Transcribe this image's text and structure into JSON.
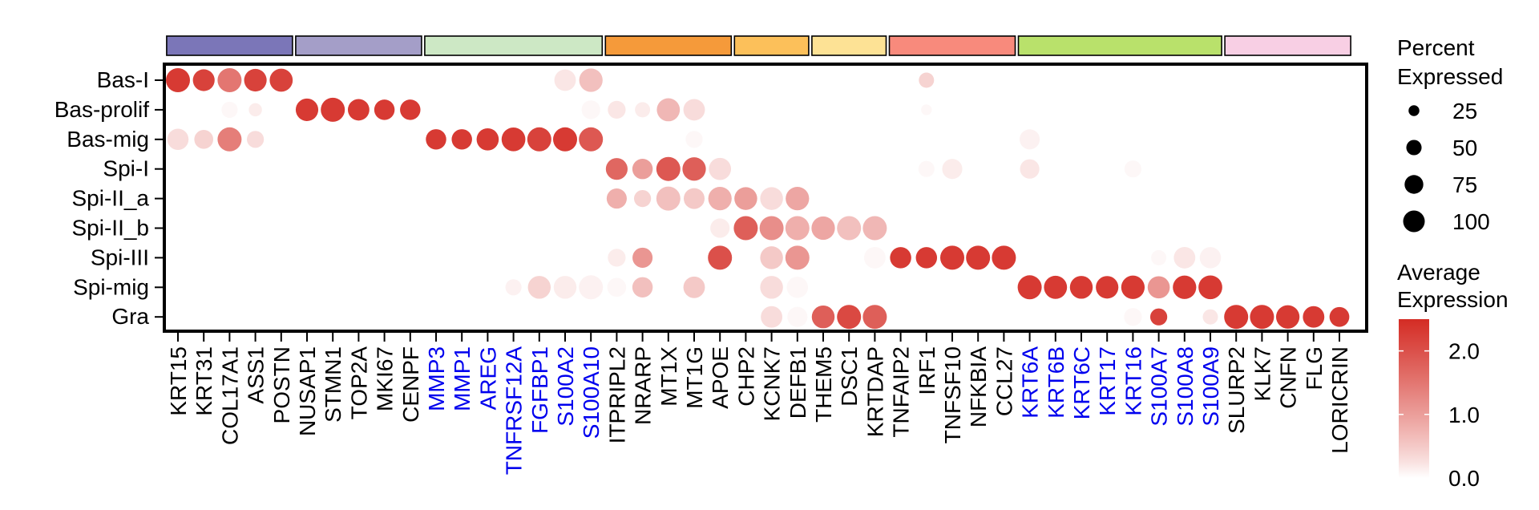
{
  "chart_data": {
    "type": "dotplot",
    "rows": [
      "Bas-I",
      "Bas-prolif",
      "Bas-mig",
      "Spi-I",
      "Spi-II_a",
      "Spi-II_b",
      "Spi-III",
      "Spi-mig",
      "Gra"
    ],
    "genes": [
      "KRT15",
      "KRT31",
      "COL17A1",
      "ASS1",
      "POSTN",
      "NUSAP1",
      "STMN1",
      "TOP2A",
      "MKI67",
      "CENPF",
      "MMP3",
      "MMP1",
      "AREG",
      "TNFRSF12A",
      "FGFBP1",
      "S100A2",
      "S100A10",
      "ITPRIPL2",
      "NRARP",
      "MT1X",
      "MT1G",
      "APOE",
      "CHP2",
      "KCNK7",
      "DEFB1",
      "THEM5",
      "DSC1",
      "KRTDAP",
      "TNFAIP2",
      "IRF1",
      "TNFSF10",
      "NFKBIA",
      "CCL27",
      "KRT6A",
      "KRT6B",
      "KRT6C",
      "KRT17",
      "KRT16",
      "S100A7",
      "S100A8",
      "S100A9",
      "SLURP2",
      "KLK7",
      "CNFN",
      "FLG",
      "LORICRIN"
    ],
    "gene_colors": [
      "#000000",
      "#000000",
      "#000000",
      "#000000",
      "#000000",
      "#000000",
      "#000000",
      "#000000",
      "#000000",
      "#000000",
      "#0000ee",
      "#0000ee",
      "#0000ee",
      "#0000ee",
      "#0000ee",
      "#0000ee",
      "#0000ee",
      "#000000",
      "#000000",
      "#000000",
      "#000000",
      "#000000",
      "#000000",
      "#000000",
      "#000000",
      "#000000",
      "#000000",
      "#000000",
      "#000000",
      "#000000",
      "#000000",
      "#000000",
      "#000000",
      "#0000ee",
      "#0000ee",
      "#0000ee",
      "#0000ee",
      "#0000ee",
      "#0000ee",
      "#0000ee",
      "#0000ee",
      "#000000",
      "#000000",
      "#000000",
      "#000000",
      "#000000"
    ],
    "groups": [
      {
        "start": 0,
        "end": 4,
        "color": "#7b76b8"
      },
      {
        "start": 5,
        "end": 9,
        "color": "#a49ec8"
      },
      {
        "start": 10,
        "end": 16,
        "color": "#cde8c5"
      },
      {
        "start": 17,
        "end": 21,
        "color": "#f59a3a"
      },
      {
        "start": 22,
        "end": 24,
        "color": "#fcc05a"
      },
      {
        "start": 25,
        "end": 27,
        "color": "#fde295"
      },
      {
        "start": 28,
        "end": 32,
        "color": "#f88a7c"
      },
      {
        "start": 33,
        "end": 40,
        "color": "#b9e16b"
      },
      {
        "start": 41,
        "end": 45,
        "color": "#f8cfe4"
      }
    ],
    "points": [
      {
        "row": 0,
        "gene": 0,
        "pct": 100,
        "avg": 2.3
      },
      {
        "row": 0,
        "gene": 1,
        "pct": 82,
        "avg": 2.2
      },
      {
        "row": 0,
        "gene": 2,
        "pct": 100,
        "avg": 1.5
      },
      {
        "row": 0,
        "gene": 3,
        "pct": 88,
        "avg": 2.2
      },
      {
        "row": 0,
        "gene": 4,
        "pct": 92,
        "avg": 2.2
      },
      {
        "row": 0,
        "gene": 15,
        "pct": 80,
        "avg": 0.2
      },
      {
        "row": 0,
        "gene": 16,
        "pct": 95,
        "avg": 0.6
      },
      {
        "row": 0,
        "gene": 29,
        "pct": 40,
        "avg": 0.4
      },
      {
        "row": 1,
        "gene": 2,
        "pct": 45,
        "avg": 0.05
      },
      {
        "row": 1,
        "gene": 3,
        "pct": 30,
        "avg": 0.15
      },
      {
        "row": 1,
        "gene": 5,
        "pct": 88,
        "avg": 2.3
      },
      {
        "row": 1,
        "gene": 6,
        "pct": 100,
        "avg": 2.3
      },
      {
        "row": 1,
        "gene": 7,
        "pct": 80,
        "avg": 2.3
      },
      {
        "row": 1,
        "gene": 8,
        "pct": 72,
        "avg": 2.3
      },
      {
        "row": 1,
        "gene": 9,
        "pct": 72,
        "avg": 2.3
      },
      {
        "row": 1,
        "gene": 16,
        "pct": 60,
        "avg": 0.05
      },
      {
        "row": 1,
        "gene": 17,
        "pct": 55,
        "avg": 0.2
      },
      {
        "row": 1,
        "gene": 18,
        "pct": 40,
        "avg": 0.15
      },
      {
        "row": 1,
        "gene": 19,
        "pct": 92,
        "avg": 0.7
      },
      {
        "row": 1,
        "gene": 20,
        "pct": 80,
        "avg": 0.3
      },
      {
        "row": 1,
        "gene": 29,
        "pct": 20,
        "avg": 0.05
      },
      {
        "row": 2,
        "gene": 0,
        "pct": 78,
        "avg": 0.3
      },
      {
        "row": 2,
        "gene": 1,
        "pct": 62,
        "avg": 0.4
      },
      {
        "row": 2,
        "gene": 2,
        "pct": 100,
        "avg": 1.4
      },
      {
        "row": 2,
        "gene": 3,
        "pct": 50,
        "avg": 0.3
      },
      {
        "row": 2,
        "gene": 10,
        "pct": 72,
        "avg": 2.3
      },
      {
        "row": 2,
        "gene": 11,
        "pct": 72,
        "avg": 2.3
      },
      {
        "row": 2,
        "gene": 12,
        "pct": 85,
        "avg": 2.3
      },
      {
        "row": 2,
        "gene": 13,
        "pct": 98,
        "avg": 2.3
      },
      {
        "row": 2,
        "gene": 14,
        "pct": 100,
        "avg": 2.2
      },
      {
        "row": 2,
        "gene": 15,
        "pct": 100,
        "avg": 2.3
      },
      {
        "row": 2,
        "gene": 16,
        "pct": 100,
        "avg": 1.9
      },
      {
        "row": 2,
        "gene": 20,
        "pct": 50,
        "avg": 0.05
      },
      {
        "row": 2,
        "gene": 33,
        "pct": 70,
        "avg": 0.1
      },
      {
        "row": 3,
        "gene": 17,
        "pct": 82,
        "avg": 1.7
      },
      {
        "row": 3,
        "gene": 18,
        "pct": 72,
        "avg": 1.0
      },
      {
        "row": 3,
        "gene": 19,
        "pct": 100,
        "avg": 1.9
      },
      {
        "row": 3,
        "gene": 20,
        "pct": 95,
        "avg": 1.8
      },
      {
        "row": 3,
        "gene": 21,
        "pct": 85,
        "avg": 0.3
      },
      {
        "row": 3,
        "gene": 29,
        "pct": 45,
        "avg": 0.05
      },
      {
        "row": 3,
        "gene": 30,
        "pct": 70,
        "avg": 0.15
      },
      {
        "row": 3,
        "gene": 33,
        "pct": 65,
        "avg": 0.2
      },
      {
        "row": 3,
        "gene": 37,
        "pct": 50,
        "avg": 0.05
      },
      {
        "row": 4,
        "gene": 17,
        "pct": 70,
        "avg": 0.8
      },
      {
        "row": 4,
        "gene": 18,
        "pct": 50,
        "avg": 0.4
      },
      {
        "row": 4,
        "gene": 19,
        "pct": 100,
        "avg": 0.6
      },
      {
        "row": 4,
        "gene": 20,
        "pct": 75,
        "avg": 0.5
      },
      {
        "row": 4,
        "gene": 21,
        "pct": 95,
        "avg": 0.8
      },
      {
        "row": 4,
        "gene": 22,
        "pct": 90,
        "avg": 1.0
      },
      {
        "row": 4,
        "gene": 23,
        "pct": 90,
        "avg": 0.3
      },
      {
        "row": 4,
        "gene": 24,
        "pct": 95,
        "avg": 0.9
      },
      {
        "row": 5,
        "gene": 21,
        "pct": 65,
        "avg": 0.15
      },
      {
        "row": 5,
        "gene": 22,
        "pct": 100,
        "avg": 1.8
      },
      {
        "row": 5,
        "gene": 23,
        "pct": 100,
        "avg": 1.2
      },
      {
        "row": 5,
        "gene": 24,
        "pct": 100,
        "avg": 0.8
      },
      {
        "row": 5,
        "gene": 25,
        "pct": 95,
        "avg": 0.9
      },
      {
        "row": 5,
        "gene": 26,
        "pct": 100,
        "avg": 0.6
      },
      {
        "row": 5,
        "gene": 27,
        "pct": 100,
        "avg": 0.7
      },
      {
        "row": 6,
        "gene": 17,
        "pct": 55,
        "avg": 0.15
      },
      {
        "row": 6,
        "gene": 18,
        "pct": 70,
        "avg": 1.1
      },
      {
        "row": 6,
        "gene": 21,
        "pct": 100,
        "avg": 2.0
      },
      {
        "row": 6,
        "gene": 23,
        "pct": 90,
        "avg": 0.5
      },
      {
        "row": 6,
        "gene": 24,
        "pct": 100,
        "avg": 1.1
      },
      {
        "row": 6,
        "gene": 27,
        "pct": 80,
        "avg": 0.05
      },
      {
        "row": 6,
        "gene": 28,
        "pct": 78,
        "avg": 2.3
      },
      {
        "row": 6,
        "gene": 29,
        "pct": 78,
        "avg": 2.3
      },
      {
        "row": 6,
        "gene": 30,
        "pct": 100,
        "avg": 2.3
      },
      {
        "row": 6,
        "gene": 31,
        "pct": 100,
        "avg": 2.3
      },
      {
        "row": 6,
        "gene": 32,
        "pct": 100,
        "avg": 2.3
      },
      {
        "row": 6,
        "gene": 38,
        "pct": 40,
        "avg": 0.05
      },
      {
        "row": 6,
        "gene": 39,
        "pct": 80,
        "avg": 0.2
      },
      {
        "row": 6,
        "gene": 40,
        "pct": 78,
        "avg": 0.1
      },
      {
        "row": 7,
        "gene": 13,
        "pct": 45,
        "avg": 0.1
      },
      {
        "row": 7,
        "gene": 14,
        "pct": 90,
        "avg": 0.4
      },
      {
        "row": 7,
        "gene": 15,
        "pct": 90,
        "avg": 0.15
      },
      {
        "row": 7,
        "gene": 16,
        "pct": 100,
        "avg": 0.1
      },
      {
        "row": 7,
        "gene": 17,
        "pct": 62,
        "avg": 0.05
      },
      {
        "row": 7,
        "gene": 18,
        "pct": 72,
        "avg": 0.6
      },
      {
        "row": 7,
        "gene": 20,
        "pct": 80,
        "avg": 0.5
      },
      {
        "row": 7,
        "gene": 23,
        "pct": 90,
        "avg": 0.3
      },
      {
        "row": 7,
        "gene": 24,
        "pct": 78,
        "avg": 0.05
      },
      {
        "row": 7,
        "gene": 33,
        "pct": 100,
        "avg": 2.3
      },
      {
        "row": 7,
        "gene": 34,
        "pct": 92,
        "avg": 2.3
      },
      {
        "row": 7,
        "gene": 35,
        "pct": 90,
        "avg": 2.3
      },
      {
        "row": 7,
        "gene": 36,
        "pct": 88,
        "avg": 2.3
      },
      {
        "row": 7,
        "gene": 37,
        "pct": 95,
        "avg": 2.3
      },
      {
        "row": 7,
        "gene": 38,
        "pct": 85,
        "avg": 1.1
      },
      {
        "row": 7,
        "gene": 39,
        "pct": 95,
        "avg": 2.3
      },
      {
        "row": 7,
        "gene": 40,
        "pct": 98,
        "avg": 2.3
      },
      {
        "row": 8,
        "gene": 23,
        "pct": 80,
        "avg": 0.3
      },
      {
        "row": 8,
        "gene": 24,
        "pct": 70,
        "avg": 0.05
      },
      {
        "row": 8,
        "gene": 25,
        "pct": 90,
        "avg": 1.8
      },
      {
        "row": 8,
        "gene": 26,
        "pct": 100,
        "avg": 2.1
      },
      {
        "row": 8,
        "gene": 27,
        "pct": 100,
        "avg": 1.8
      },
      {
        "row": 8,
        "gene": 37,
        "pct": 55,
        "avg": 0.05
      },
      {
        "row": 8,
        "gene": 38,
        "pct": 50,
        "avg": 2.2
      },
      {
        "row": 8,
        "gene": 40,
        "pct": 40,
        "avg": 0.2
      },
      {
        "row": 8,
        "gene": 41,
        "pct": 100,
        "avg": 2.3
      },
      {
        "row": 8,
        "gene": 42,
        "pct": 100,
        "avg": 2.3
      },
      {
        "row": 8,
        "gene": 43,
        "pct": 95,
        "avg": 2.3
      },
      {
        "row": 8,
        "gene": 44,
        "pct": 80,
        "avg": 2.3
      },
      {
        "row": 8,
        "gene": 45,
        "pct": 68,
        "avg": 2.3
      }
    ],
    "legend_size": {
      "title_lines": [
        "Percent",
        "Expressed"
      ],
      "values": [
        25,
        50,
        75,
        100
      ]
    },
    "legend_color": {
      "title_lines": [
        "Average",
        "Expression"
      ],
      "ticks": [
        0.0,
        1.0,
        2.0
      ],
      "tick_labels": [
        "0.0",
        "1.0",
        "2.0"
      ],
      "range": [
        0,
        2.5
      ],
      "low_color": "#ffffff",
      "high_color": "#d42c24"
    },
    "size_range_pct": [
      0,
      100
    ]
  }
}
